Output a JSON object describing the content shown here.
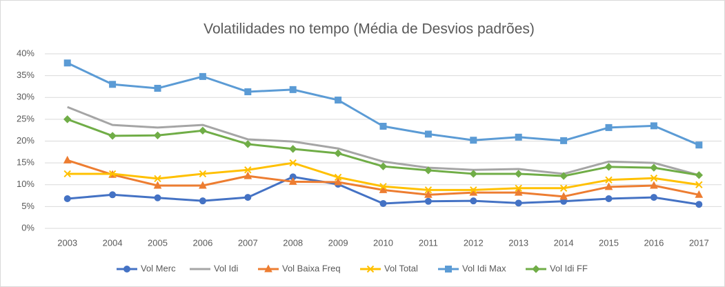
{
  "chart_data": {
    "type": "line",
    "title": "Volatilidades no tempo (Média de Desvios padrões)",
    "categories": [
      "2003",
      "2004",
      "2005",
      "2006",
      "2007",
      "2008",
      "2009",
      "2010",
      "2011",
      "2012",
      "2013",
      "2014",
      "2015",
      "2016",
      "2017"
    ],
    "series": [
      {
        "name": "Vol Merc",
        "color": "#4472c4",
        "marker": "circle",
        "values": [
          6.8,
          7.7,
          7.0,
          6.3,
          7.1,
          11.8,
          10.1,
          5.7,
          6.2,
          6.3,
          5.8,
          6.2,
          6.8,
          7.1,
          5.5
        ]
      },
      {
        "name": "Vol Idi",
        "color": "#a5a5a5",
        "marker": "none",
        "values": [
          27.8,
          23.7,
          23.1,
          23.7,
          20.4,
          19.9,
          18.3,
          15.3,
          13.9,
          13.4,
          13.6,
          12.5,
          15.3,
          15.0,
          12.2
        ]
      },
      {
        "name": "Vol Baixa Freq",
        "color": "#ed7d31",
        "marker": "triangle",
        "values": [
          15.6,
          12.3,
          9.8,
          9.8,
          12.0,
          10.7,
          10.6,
          8.8,
          7.7,
          8.2,
          8.2,
          7.3,
          9.5,
          9.8,
          7.7
        ]
      },
      {
        "name": "Vol Total",
        "color": "#ffc000",
        "marker": "x",
        "values": [
          12.5,
          12.5,
          11.4,
          12.5,
          13.4,
          15.0,
          11.7,
          9.6,
          8.8,
          8.8,
          9.2,
          9.2,
          11.1,
          11.5,
          10.0
        ]
      },
      {
        "name": "Vol Idi Max",
        "color": "#5b9bd5",
        "marker": "square",
        "values": [
          37.9,
          33.0,
          32.1,
          34.8,
          31.3,
          31.8,
          29.4,
          23.4,
          21.6,
          20.2,
          20.9,
          20.1,
          23.1,
          23.5,
          19.1
        ]
      },
      {
        "name": "Vol Idi FF",
        "color": "#70ad47",
        "marker": "diamond",
        "values": [
          25.0,
          21.2,
          21.3,
          22.4,
          19.3,
          18.2,
          17.2,
          14.2,
          13.3,
          12.5,
          12.5,
          12.0,
          14.1,
          13.9,
          12.2
        ]
      }
    ],
    "ylim": [
      0,
      40
    ],
    "yticks": [
      {
        "value": 0,
        "label": "0%"
      },
      {
        "value": 5,
        "label": "5%"
      },
      {
        "value": 10,
        "label": "10%"
      },
      {
        "value": 15,
        "label": "15%"
      },
      {
        "value": 20,
        "label": "20%"
      },
      {
        "value": 25,
        "label": "25%"
      },
      {
        "value": 30,
        "label": "30%"
      },
      {
        "value": 35,
        "label": "35%"
      },
      {
        "value": 40,
        "label": "40%"
      }
    ],
    "grid": true,
    "legend": "bottom"
  }
}
